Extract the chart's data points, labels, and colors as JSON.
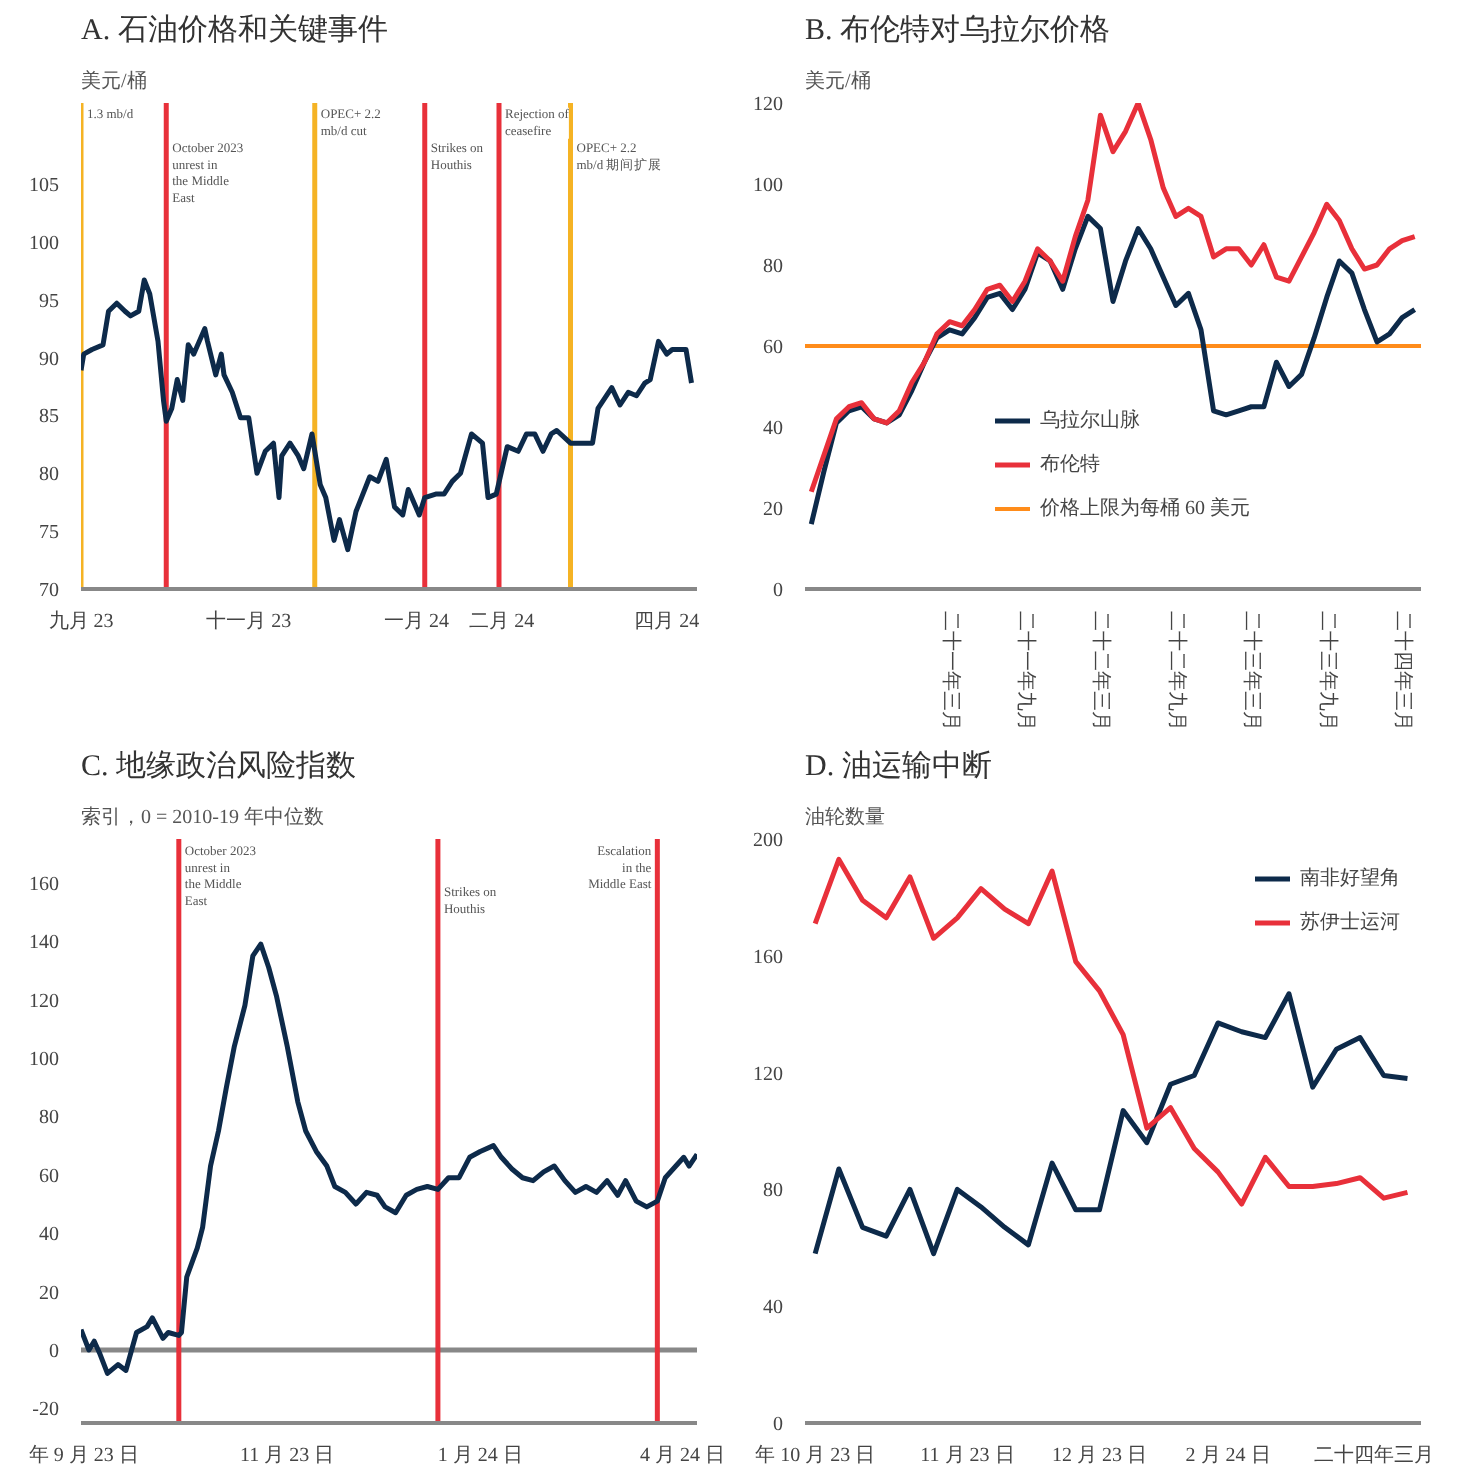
{
  "chart_data": [
    {
      "type": "line",
      "title": "A. 石油价格和关键事件",
      "ylabel": "美元/桶",
      "legend": false,
      "grid": false,
      "marker": "none",
      "line_style": "solid",
      "xlim": [
        "2023-09-01",
        "2024-04-12"
      ],
      "ylim": [
        70,
        112
      ],
      "yticks": [
        70,
        75,
        80,
        85,
        90,
        95,
        100,
        105
      ],
      "xticks": [
        {
          "value": "2023-09-01",
          "label": "九月 23"
        },
        {
          "value": "2023-11-01",
          "label": "十一月 23"
        },
        {
          "value": "2024-01-01",
          "label": "一月 24"
        },
        {
          "value": "2024-02-01",
          "label": "二月 24"
        },
        {
          "value": "2024-04-01",
          "label": "四月 24"
        }
      ],
      "ref_lines": [
        {
          "axis": "x",
          "value": "2023-09-01",
          "label": "1.3 mb/d",
          "color": "#f5b324"
        },
        {
          "axis": "x",
          "value": "2023-10-02",
          "label": "October 2023 unrest in the Middle East",
          "color": "#e8303a"
        },
        {
          "axis": "x",
          "value": "2023-11-25",
          "label": "OPEC+ 2.2 mb/d cut",
          "color": "#f5b324"
        },
        {
          "axis": "x",
          "value": "2024-01-04",
          "label": "Strikes on Houthis",
          "color": "#e8303a"
        },
        {
          "axis": "x",
          "value": "2024-01-31",
          "label": "Rejection of ceasefire",
          "color": "#e8303a"
        },
        {
          "axis": "x",
          "value": "2024-02-26",
          "label": "OPEC+ 2.2 mb/d 期间扩展",
          "color": "#f5b324"
        }
      ],
      "series": [
        {
          "color": "#0d2a4a",
          "x": [
            "2023-09-01",
            "2023-09-02",
            "2023-09-05",
            "2023-09-09",
            "2023-09-11",
            "2023-09-14",
            "2023-09-17",
            "2023-09-19",
            "2023-09-22",
            "2023-09-24",
            "2023-09-26",
            "2023-09-29",
            "2023-10-01",
            "2023-10-02",
            "2023-10-04",
            "2023-10-06",
            "2023-10-08",
            "2023-10-10",
            "2023-10-12",
            "2023-10-14",
            "2023-10-16",
            "2023-10-17",
            "2023-10-20",
            "2023-10-22",
            "2023-10-23",
            "2023-10-26",
            "2023-10-29",
            "2023-11-01",
            "2023-11-04",
            "2023-11-07",
            "2023-11-10",
            "2023-11-12",
            "2023-11-13",
            "2023-11-16",
            "2023-11-19",
            "2023-11-21",
            "2023-11-24",
            "2023-11-27",
            "2023-11-29",
            "2023-12-02",
            "2023-12-04",
            "2023-12-07",
            "2023-12-10",
            "2023-12-12",
            "2023-12-15",
            "2023-12-18",
            "2023-12-21",
            "2023-12-24",
            "2023-12-27",
            "2023-12-29",
            "2024-01-02",
            "2024-01-04",
            "2024-01-08",
            "2024-01-11",
            "2024-01-14",
            "2024-01-17",
            "2024-01-21",
            "2024-01-25",
            "2024-01-27",
            "2024-01-30",
            "2024-02-03",
            "2024-02-07",
            "2024-02-10",
            "2024-02-13",
            "2024-02-16",
            "2024-02-19",
            "2024-02-21",
            "2024-02-26",
            "2024-03-05",
            "2024-03-07",
            "2024-03-12",
            "2024-03-15",
            "2024-03-18",
            "2024-03-21",
            "2024-03-24",
            "2024-03-26",
            "2024-03-29",
            "2024-04-01",
            "2024-04-03",
            "2024-04-08",
            "2024-04-10"
          ],
          "values": [
            88.9,
            90.3,
            90.7,
            91.1,
            94.0,
            94.7,
            94.0,
            93.6,
            94.0,
            96.7,
            95.5,
            91.4,
            86.3,
            84.5,
            85.6,
            88.1,
            86.3,
            91.1,
            90.3,
            91.4,
            92.5,
            91.4,
            88.5,
            90.3,
            88.5,
            87.0,
            84.8,
            84.8,
            80.0,
            81.9,
            82.6,
            77.9,
            81.5,
            82.6,
            81.5,
            80.4,
            83.4,
            79.0,
            77.9,
            74.2,
            76.0,
            73.4,
            76.7,
            77.9,
            79.7,
            79.3,
            81.2,
            77.1,
            76.4,
            78.6,
            76.4,
            77.9,
            78.2,
            78.2,
            79.3,
            80.0,
            83.4,
            82.6,
            77.9,
            78.2,
            82.3,
            81.9,
            83.4,
            83.4,
            81.9,
            83.4,
            83.7,
            82.6,
            82.6,
            85.6,
            87.4,
            85.9,
            87.0,
            86.7,
            87.8,
            88.1,
            91.4,
            90.3,
            90.7,
            90.7,
            87.8
          ]
        }
      ]
    },
    {
      "type": "line",
      "title": "B. 布伦特对乌拉尔价格",
      "ylabel": "美元/桶",
      "legend": "bottom",
      "grid": false,
      "marker": "none",
      "line_style": "solid",
      "ylim": [
        0,
        120
      ],
      "yticks": [
        0,
        20,
        40,
        60,
        80,
        100,
        120
      ],
      "categories": [
        null,
        null,
        null,
        null,
        null,
        null,
        null,
        null,
        null,
        null,
        null,
        "二十一年三月",
        null,
        null,
        null,
        null,
        null,
        "二十一年九月",
        null,
        null,
        null,
        null,
        null,
        "二十二年三月",
        null,
        null,
        null,
        null,
        null,
        "二十二年九月",
        null,
        null,
        null,
        null,
        null,
        "二十三年三月",
        null,
        null,
        null,
        null,
        null,
        "二十三年九月",
        null,
        null,
        null,
        null,
        null,
        "二十四年三月",
        null
      ],
      "ref_lines": [
        {
          "axis": "y",
          "value": 60,
          "label": "价格上限为每桶 60 美元",
          "color": "#ff8c1a"
        }
      ],
      "series": [
        {
          "name": "乌拉尔山脉",
          "color": "#0d2a4a",
          "values": [
            16,
            29,
            41,
            44,
            45,
            42,
            41,
            43,
            49,
            56,
            62,
            64,
            63,
            67,
            72,
            73,
            69,
            74,
            83,
            81,
            74,
            84,
            92,
            89,
            71,
            81,
            89,
            84,
            77,
            70,
            73,
            64,
            44,
            43,
            44,
            45,
            45,
            56,
            50,
            53,
            62,
            72,
            81,
            78,
            69,
            61,
            63,
            67,
            69
          ]
        },
        {
          "name": "布伦特",
          "color": "#e8303a",
          "values": [
            24,
            33,
            42,
            45,
            46,
            42,
            41,
            44,
            51,
            56,
            63,
            66,
            65,
            69,
            74,
            75,
            71,
            76,
            84,
            81,
            76,
            87,
            96,
            117,
            108,
            113,
            120,
            111,
            99,
            92,
            94,
            92,
            82,
            84,
            84,
            80,
            85,
            77,
            76,
            82,
            88,
            95,
            91,
            84,
            79,
            80,
            84,
            86,
            87
          ]
        }
      ]
    },
    {
      "type": "line",
      "title": "C. 地缘政治风险指数",
      "ylabel": "索引，0 = 2010-19 年中位数",
      "legend": false,
      "grid": false,
      "marker": "none",
      "line_style": "solid",
      "xlim": [
        "2023-08-31",
        "2024-04-20"
      ],
      "ylim": [
        -25,
        175
      ],
      "yticks": [
        -20,
        0,
        20,
        40,
        60,
        80,
        100,
        120,
        140,
        160
      ],
      "xticks": [
        {
          "value": "2023-09-01",
          "label": "年 9 月 23 日"
        },
        {
          "value": "2023-11-17",
          "label": "11 月 23 日"
        },
        {
          "value": "2024-01-29",
          "label": "1 月 24 日"
        },
        {
          "value": "2024-04-17",
          "label": "4 月 24 日"
        }
      ],
      "ref_lines": [
        {
          "axis": "y",
          "value": 0,
          "color": "#888888"
        },
        {
          "axis": "x",
          "value": "2023-10-07",
          "label": "October 2023 unrest in the Middle East",
          "color": "#e8303a"
        },
        {
          "axis": "x",
          "value": "2024-01-13",
          "label": "Strikes on Houthis",
          "color": "#e8303a"
        },
        {
          "axis": "x",
          "value": "2024-04-05",
          "label": "Escalation in the Middle East",
          "color": "#e8303a"
        }
      ],
      "series": [
        {
          "color": "#0d2a4a",
          "x": [
            "2023-08-31",
            "2023-09-03",
            "2023-09-05",
            "2023-09-07",
            "2023-09-10",
            "2023-09-14",
            "2023-09-17",
            "2023-09-21",
            "2023-09-25",
            "2023-09-27",
            "2023-10-01",
            "2023-10-03",
            "2023-10-07",
            "2023-10-08",
            "2023-10-10",
            "2023-10-14",
            "2023-10-16",
            "2023-10-19",
            "2023-10-22",
            "2023-10-25",
            "2023-10-28",
            "2023-11-01",
            "2023-11-04",
            "2023-11-07",
            "2023-11-10",
            "2023-11-13",
            "2023-11-17",
            "2023-11-21",
            "2023-11-24",
            "2023-11-28",
            "2023-12-02",
            "2023-12-05",
            "2023-12-09",
            "2023-12-13",
            "2023-12-17",
            "2023-12-21",
            "2023-12-24",
            "2023-12-28",
            "2024-01-01",
            "2024-01-05",
            "2024-01-09",
            "2024-01-13",
            "2024-01-17",
            "2024-01-21",
            "2024-01-25",
            "2024-01-29",
            "2024-02-03",
            "2024-02-06",
            "2024-02-10",
            "2024-02-14",
            "2024-02-18",
            "2024-02-22",
            "2024-02-26",
            "2024-03-01",
            "2024-03-05",
            "2024-03-09",
            "2024-03-13",
            "2024-03-17",
            "2024-03-21",
            "2024-03-24",
            "2024-03-28",
            "2024-04-01",
            "2024-04-05",
            "2024-04-08",
            "2024-04-12",
            "2024-04-15",
            "2024-04-17",
            "2024-04-20"
          ],
          "values": [
            7,
            0,
            3,
            -1,
            -8,
            -5,
            -7,
            6,
            8,
            11,
            4,
            6,
            5,
            6,
            25,
            35,
            42,
            63,
            75,
            90,
            104,
            118,
            135,
            139,
            131,
            121,
            104,
            85,
            75,
            68,
            63,
            56,
            54,
            50,
            54,
            53,
            49,
            47,
            53,
            55,
            56,
            55,
            59,
            59,
            66,
            68,
            70,
            66,
            62,
            59,
            58,
            61,
            63,
            58,
            54,
            56,
            54,
            58,
            53,
            58,
            51,
            49,
            51,
            59,
            63,
            66,
            63,
            67
          ]
        }
      ]
    },
    {
      "type": "line",
      "title": "D. 油运输中断",
      "ylabel": "油轮数量",
      "legend": "top right",
      "grid": false,
      "marker": "none",
      "line_style": "solid",
      "xlim": [
        "2023-09-28",
        "2024-03-28"
      ],
      "ylim": [
        0,
        200
      ],
      "yticks": [
        0,
        40,
        80,
        120,
        160,
        200
      ],
      "xticks": [
        {
          "value": "2023-10-01",
          "label": "年 10 月 23 日"
        },
        {
          "value": "2023-11-15",
          "label": "11 月 23 日"
        },
        {
          "value": "2023-12-24",
          "label": "12 月 23 日"
        },
        {
          "value": "2024-01-31",
          "label": "2 月 24 日"
        },
        {
          "value": "2024-03-14",
          "label": "二十四年三月"
        }
      ],
      "x": [
        "2023-10-01",
        "2023-10-08",
        "2023-10-15",
        "2023-10-22",
        "2023-10-29",
        "2023-11-05",
        "2023-11-12",
        "2023-11-19",
        "2023-11-26",
        "2023-12-03",
        "2023-12-10",
        "2023-12-17",
        "2023-12-24",
        "2023-12-31",
        "2024-01-07",
        "2024-01-14",
        "2024-01-21",
        "2024-01-28",
        "2024-02-04",
        "2024-02-11",
        "2024-02-18",
        "2024-02-25",
        "2024-03-03",
        "2024-03-10",
        "2024-03-17",
        "2024-03-24"
      ],
      "series": [
        {
          "name": "南非好望角",
          "color": "#0d2a4a",
          "values": [
            58,
            87,
            67,
            64,
            80,
            58,
            80,
            74,
            67,
            61,
            89,
            73,
            73,
            107,
            96,
            116,
            119,
            137,
            134,
            132,
            147,
            115,
            128,
            132,
            119,
            118
          ]
        },
        {
          "name": "苏伊士运河",
          "color": "#e8303a",
          "values": [
            171,
            193,
            179,
            173,
            187,
            166,
            173,
            183,
            176,
            171,
            189,
            158,
            148,
            133,
            101,
            108,
            94,
            86,
            75,
            91,
            81,
            81,
            82,
            84,
            77,
            79
          ]
        }
      ]
    }
  ]
}
